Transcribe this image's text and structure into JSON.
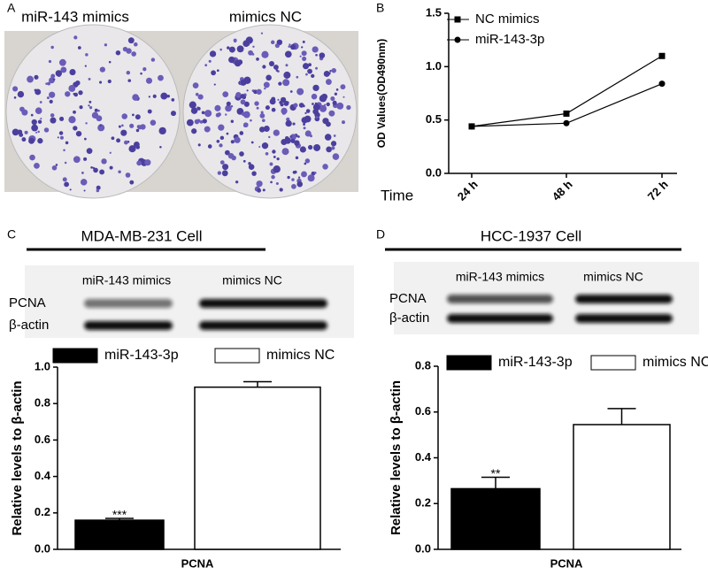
{
  "panel_labels": [
    "A",
    "B",
    "C",
    "D"
  ],
  "photo": {
    "labels": [
      "miR-143 mimics",
      "mimics NC"
    ]
  },
  "blots": [
    {
      "title": "MDA-MB-231 Cell",
      "columns": [
        "miR-143 mimics",
        "mimics NC"
      ],
      "rows": [
        "PCNA",
        "β-actin"
      ]
    },
    {
      "title": "HCC-1937 Cell",
      "columns": [
        "miR-143 mimics",
        "mimics NC"
      ],
      "rows": [
        "PCNA",
        "β-actin"
      ]
    }
  ],
  "chart_data": [
    {
      "type": "line",
      "xlabel": "Time",
      "ylabel": "OD Values(OD490nm)",
      "categories": [
        "24 h",
        "48 h",
        "72 h"
      ],
      "series": [
        {
          "name": "NC mimics",
          "color": "#000000",
          "marker": "square",
          "values": [
            0.44,
            0.56,
            1.1
          ]
        },
        {
          "name": "miR-143-3p",
          "color": "#000000",
          "marker": "circle",
          "values": [
            0.44,
            0.47,
            0.84
          ]
        }
      ],
      "ylim": [
        0,
        1.5
      ],
      "yticks": [
        {
          "value": 0,
          "label": "0.0"
        },
        0.5,
        {
          "value": 1,
          "label": "1.0"
        },
        1.5
      ]
    },
    {
      "type": "bar",
      "ylabel": "Relative levels to β-actin",
      "categories": [
        "PCNA"
      ],
      "series": [
        {
          "name": "miR-143-3p",
          "color": "#000000",
          "values": [
            0.16
          ],
          "errors": [
            0.01
          ],
          "annotations": [
            "***"
          ]
        },
        {
          "name": "mimics NC",
          "color": "#ffffff",
          "values": [
            0.89
          ],
          "errors": [
            0.03
          ]
        }
      ],
      "ylim": [
        0,
        1.0
      ],
      "yticks": [
        {
          "value": 0,
          "label": "0.0"
        },
        0.2,
        0.4,
        0.6,
        0.8,
        {
          "value": 1,
          "label": "1.0"
        }
      ]
    },
    {
      "type": "bar",
      "ylabel": "Relative levels to β-actin",
      "categories": [
        "PCNA"
      ],
      "series": [
        {
          "name": "miR-143-3p",
          "color": "#000000",
          "values": [
            0.265
          ],
          "errors": [
            0.05
          ],
          "annotations": [
            "**"
          ]
        },
        {
          "name": "mimics NC",
          "color": "#ffffff",
          "values": [
            0.545
          ],
          "errors": [
            0.07
          ]
        }
      ],
      "ylim": [
        0,
        0.8
      ],
      "yticks": [
        {
          "value": 0,
          "label": "0.0"
        },
        0.2,
        0.4,
        0.6,
        0.8
      ]
    }
  ]
}
